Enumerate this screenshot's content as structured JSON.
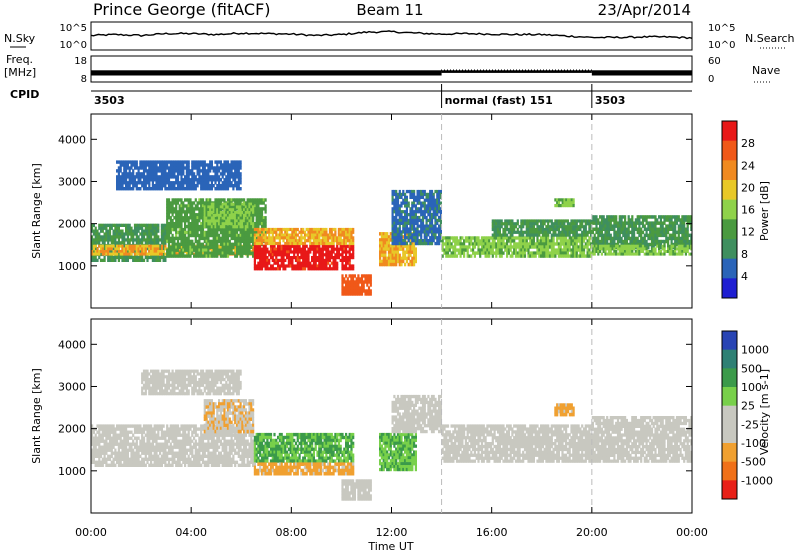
{
  "header": {
    "station": "Prince George (fitACF)",
    "beam": "Beam 11",
    "date": "23/Apr/2014"
  },
  "sky_panel": {
    "left_label": "N.Sky",
    "left_ticks": [
      "10^5",
      "10^0"
    ],
    "right_ticks": [
      "10^5",
      "10^0"
    ],
    "right_label": "N.Search"
  },
  "freq_panel": {
    "left_label_line1": "Freq.",
    "left_label_line2": "[MHz]",
    "left_ticks": [
      "18",
      "8"
    ],
    "right_ticks": [
      "60",
      "0"
    ],
    "right_label": "Nave"
  },
  "cpid_panel": {
    "label": "CPID",
    "segments": [
      {
        "start_hour": 0,
        "end_hour": 14,
        "text": "3503"
      },
      {
        "start_hour": 14,
        "end_hour": 20,
        "text": "normal (fast) 151"
      },
      {
        "start_hour": 20,
        "end_hour": 24,
        "text": "3503"
      }
    ]
  },
  "x_axis": {
    "label": "Time UT",
    "ticks": [
      "00:00",
      "04:00",
      "08:00",
      "12:00",
      "16:00",
      "20:00",
      "00:00"
    ],
    "tick_hours": [
      0,
      4,
      8,
      12,
      16,
      20,
      24
    ],
    "mode_change_hours": [
      14,
      20
    ]
  },
  "colors": {
    "power_scale": [
      "#1f1fd2",
      "#2a64b8",
      "#3f8f5f",
      "#4a9a40",
      "#8fd24a",
      "#e8c828",
      "#f08a20",
      "#f05818",
      "#e81818"
    ],
    "velocity_scale": [
      "#2844b4",
      "#2e8074",
      "#3b9a4a",
      "#78d04a",
      "#c8c8c0",
      "#c8c8c0",
      "#f0a030",
      "#f07018",
      "#e82018"
    ],
    "trace": "#000000",
    "mode_line": "#bbbbbb"
  },
  "chart_data": [
    {
      "type": "line",
      "name": "sky-noise",
      "x_hours": [
        0,
        1,
        2,
        3,
        4,
        5,
        6,
        7,
        8,
        9,
        10,
        11,
        12,
        13,
        14,
        15,
        16,
        17,
        18,
        19,
        20,
        21,
        22,
        23,
        24
      ],
      "log_noise": [
        2.6,
        2.8,
        2.6,
        3.0,
        3.0,
        2.8,
        3.1,
        3.0,
        2.9,
        2.6,
        2.8,
        3.3,
        3.4,
        3.1,
        2.9,
        3.0,
        2.9,
        2.8,
        2.8,
        2.5,
        2.2,
        2.2,
        2.3,
        2.3,
        2.1
      ],
      "ylim": [
        0,
        5
      ]
    },
    {
      "type": "area",
      "name": "frequency",
      "segments_mhz": [
        {
          "start_hour": 0,
          "end_hour": 14,
          "min": 10.5,
          "max": 12.5
        },
        {
          "start_hour": 14,
          "end_hour": 20,
          "min": 11.5,
          "max": 12.5
        },
        {
          "start_hour": 20,
          "end_hour": 24,
          "min": 10.5,
          "max": 12.5
        }
      ],
      "ylim": [
        8,
        18
      ]
    },
    {
      "type": "heatmap",
      "name": "power",
      "ylabel": "Slant Range [km]",
      "ylim": [
        0,
        4600
      ],
      "yticks": [
        1000,
        2000,
        3000,
        4000
      ],
      "xlim": [
        0,
        24
      ],
      "colorbar": {
        "label": "Power [dB]",
        "ticks": [
          "28",
          "24",
          "20",
          "16",
          "12",
          "8",
          "4"
        ],
        "range": [
          0,
          30
        ]
      },
      "regions": [
        {
          "x0": 0.0,
          "x1": 3.0,
          "y0": 1100,
          "y1": 2000,
          "value": 10
        },
        {
          "x0": 0.0,
          "x1": 6.5,
          "y0": 1250,
          "y1": 1500,
          "value": 20
        },
        {
          "x0": 3.0,
          "x1": 7.0,
          "y0": 1200,
          "y1": 2600,
          "value": 12
        },
        {
          "x0": 4.5,
          "x1": 6.5,
          "y0": 1900,
          "y1": 2500,
          "value": 14
        },
        {
          "x0": 1.0,
          "x1": 6.0,
          "y0": 2800,
          "y1": 3500,
          "value": 5
        },
        {
          "x0": 6.5,
          "x1": 10.5,
          "y0": 900,
          "y1": 1500,
          "value": 28
        },
        {
          "x0": 6.5,
          "x1": 10.5,
          "y0": 1500,
          "y1": 1900,
          "value": 20
        },
        {
          "x0": 10.0,
          "x1": 11.2,
          "y0": 300,
          "y1": 800,
          "value": 25
        },
        {
          "x0": 11.5,
          "x1": 13.0,
          "y0": 1000,
          "y1": 1800,
          "value": 20
        },
        {
          "x0": 12.0,
          "x1": 14.0,
          "y0": 1500,
          "y1": 2800,
          "value": 6
        },
        {
          "x0": 14.0,
          "x1": 20.0,
          "y0": 1200,
          "y1": 1700,
          "value": 14
        },
        {
          "x0": 16.0,
          "x1": 20.0,
          "y0": 1700,
          "y1": 2100,
          "value": 10
        },
        {
          "x0": 18.5,
          "x1": 19.3,
          "y0": 2400,
          "y1": 2600,
          "value": 14
        },
        {
          "x0": 20.0,
          "x1": 24.0,
          "y0": 1400,
          "y1": 2200,
          "value": 10
        },
        {
          "x0": 20.0,
          "x1": 24.0,
          "y0": 1250,
          "y1": 1500,
          "value": 14
        }
      ]
    },
    {
      "type": "heatmap",
      "name": "velocity",
      "ylabel": "Slant Range [km]",
      "ylim": [
        0,
        4600
      ],
      "yticks": [
        1000,
        2000,
        3000,
        4000
      ],
      "xlim": [
        0,
        24
      ],
      "colorbar": {
        "label": "Velocity [m s-1]",
        "ticks": [
          "1000",
          "500",
          "100",
          "25",
          "-25",
          "-100",
          "-500",
          "-1000"
        ],
        "range": [
          -1000,
          1000
        ]
      },
      "regions": [
        {
          "x0": 0.0,
          "x1": 6.5,
          "y0": 1100,
          "y1": 2100,
          "value": 0
        },
        {
          "x0": 2.0,
          "x1": 6.0,
          "y0": 2800,
          "y1": 3400,
          "value": 0
        },
        {
          "x0": 4.5,
          "x1": 6.5,
          "y0": 1900,
          "y1": 2700,
          "value": -300
        },
        {
          "x0": 6.5,
          "x1": 10.5,
          "y0": 1200,
          "y1": 1900,
          "value": 350
        },
        {
          "x0": 6.5,
          "x1": 10.5,
          "y0": 900,
          "y1": 1200,
          "value": -400
        },
        {
          "x0": 10.0,
          "x1": 11.2,
          "y0": 300,
          "y1": 800,
          "value": 0
        },
        {
          "x0": 11.5,
          "x1": 13.0,
          "y0": 1000,
          "y1": 1900,
          "value": 300
        },
        {
          "x0": 12.0,
          "x1": 14.0,
          "y0": 1900,
          "y1": 2800,
          "value": 0
        },
        {
          "x0": 14.0,
          "x1": 20.0,
          "y0": 1200,
          "y1": 2100,
          "value": 0
        },
        {
          "x0": 18.5,
          "x1": 19.3,
          "y0": 2300,
          "y1": 2600,
          "value": -400
        },
        {
          "x0": 20.0,
          "x1": 24.0,
          "y0": 1200,
          "y1": 2300,
          "value": 0
        }
      ]
    }
  ]
}
